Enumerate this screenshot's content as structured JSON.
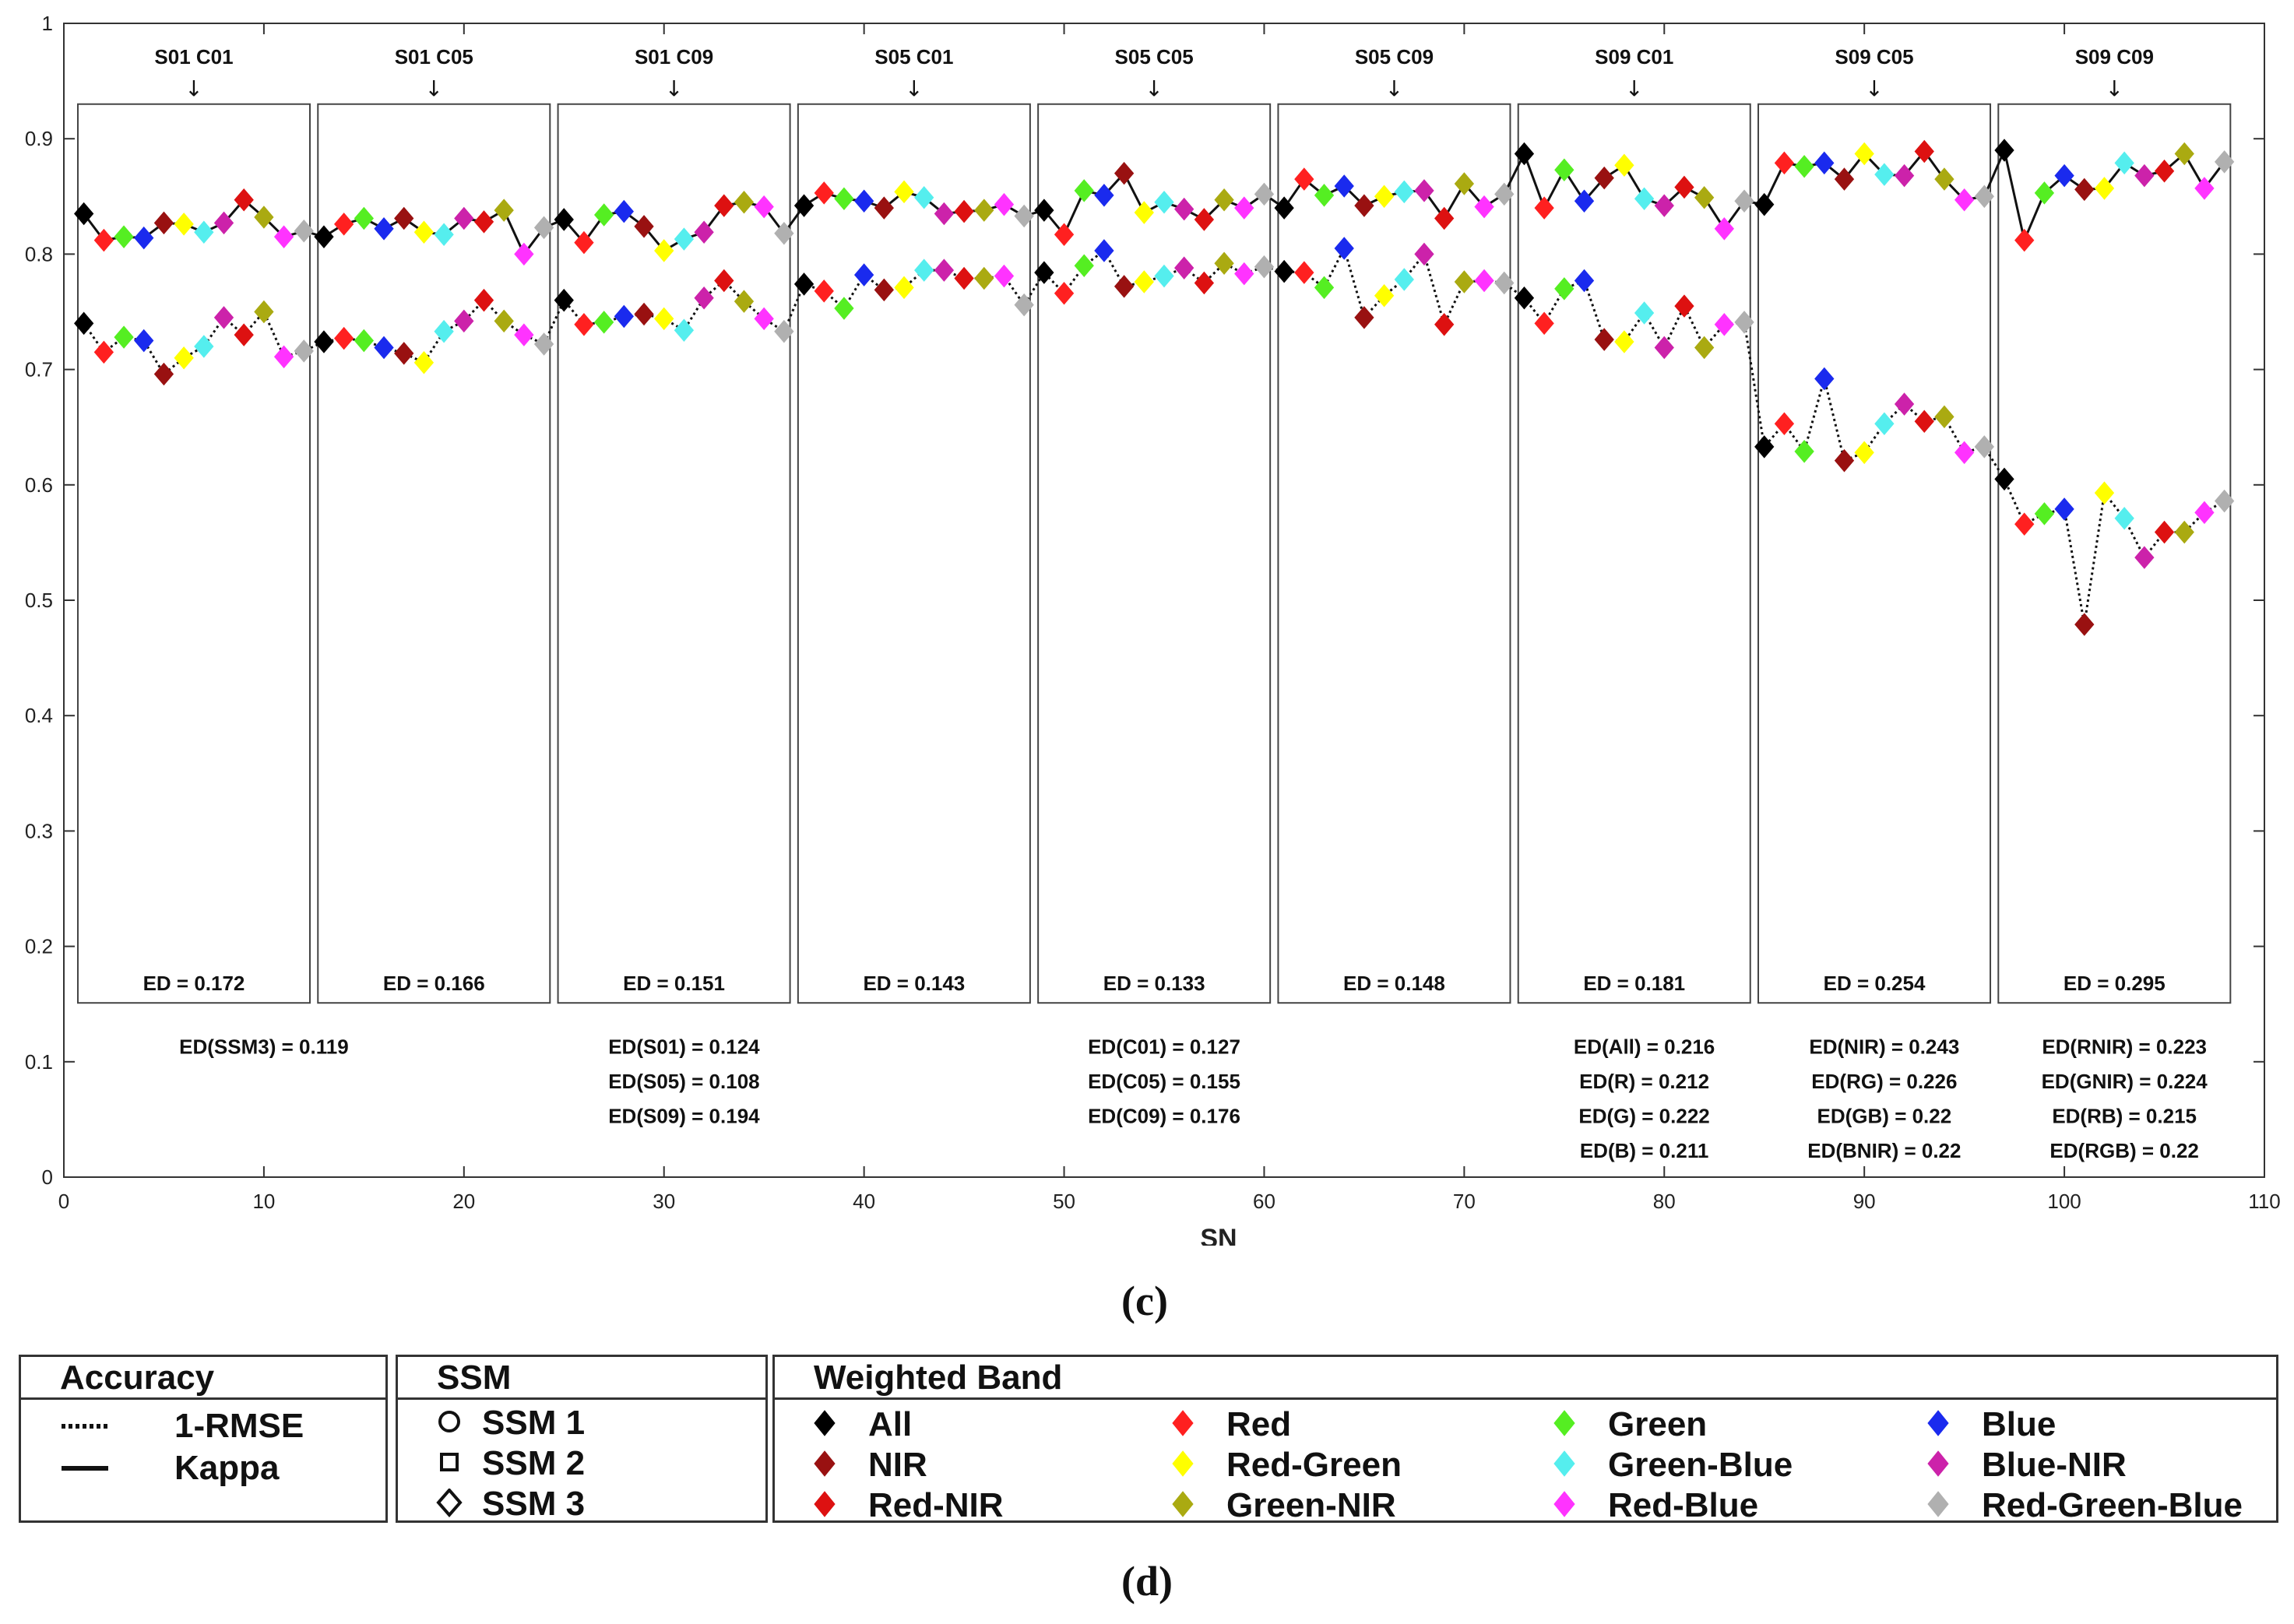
{
  "chart_data": {
    "type": "line",
    "xlabel": "SN",
    "ylabel": "",
    "xlim": [
      0,
      110
    ],
    "ylim": [
      0,
      1
    ],
    "xticks": [
      0,
      10,
      20,
      30,
      40,
      50,
      60,
      70,
      80,
      90,
      100,
      110
    ],
    "yticks": [
      0,
      0.1,
      0.2,
      0.3,
      0.4,
      0.5,
      0.6,
      0.7,
      0.8,
      0.9,
      1
    ],
    "ytick_labels": [
      "0",
      "0.1",
      "0.2",
      "0.3",
      "0.4",
      "0.5",
      "0.6",
      "0.7",
      "0.8",
      "0.9",
      "1"
    ],
    "bands": [
      "All",
      "Red",
      "Green",
      "Blue",
      "NIR",
      "Red-Green",
      "Green-Blue",
      "Blue-NIR",
      "Red-NIR",
      "Green-NIR",
      "Red-Blue",
      "Red-Green-Blue"
    ],
    "band_colors": [
      "#000000",
      "#ff2020",
      "#55ee22",
      "#1a2aee",
      "#991111",
      "#ffff00",
      "#55eeee",
      "#cc22aa",
      "#dd1111",
      "#aaaa11",
      "#ff33ff",
      "#b0b0b0"
    ],
    "x": [
      1,
      2,
      3,
      4,
      5,
      6,
      7,
      8,
      9,
      10,
      11,
      12,
      13,
      14,
      15,
      16,
      17,
      18,
      19,
      20,
      21,
      22,
      23,
      24,
      25,
      26,
      27,
      28,
      29,
      30,
      31,
      32,
      33,
      34,
      35,
      36,
      37,
      38,
      39,
      40,
      41,
      42,
      43,
      44,
      45,
      46,
      47,
      48,
      49,
      50,
      51,
      52,
      53,
      54,
      55,
      56,
      57,
      58,
      59,
      60,
      61,
      62,
      63,
      64,
      65,
      66,
      67,
      68,
      69,
      70,
      71,
      72,
      73,
      74,
      75,
      76,
      77,
      78,
      79,
      80,
      81,
      82,
      83,
      84,
      85,
      86,
      87,
      88,
      89,
      90,
      91,
      92,
      93,
      94,
      95,
      96,
      97,
      98,
      99,
      100,
      101,
      102,
      103,
      104,
      105,
      106,
      107,
      108
    ],
    "series": [
      {
        "name": "Kappa",
        "style": "solid",
        "values": [
          0.835,
          0.812,
          0.815,
          0.814,
          0.827,
          0.826,
          0.819,
          0.827,
          0.847,
          0.832,
          0.815,
          0.82,
          0.815,
          0.826,
          0.831,
          0.822,
          0.831,
          0.819,
          0.817,
          0.831,
          0.828,
          0.838,
          0.8,
          0.823,
          0.83,
          0.81,
          0.834,
          0.837,
          0.824,
          0.803,
          0.813,
          0.819,
          0.842,
          0.845,
          0.841,
          0.818,
          0.842,
          0.853,
          0.848,
          0.846,
          0.84,
          0.854,
          0.849,
          0.835,
          0.837,
          0.838,
          0.843,
          0.833,
          0.838,
          0.817,
          0.855,
          0.851,
          0.87,
          0.836,
          0.845,
          0.839,
          0.83,
          0.847,
          0.84,
          0.852,
          0.84,
          0.865,
          0.851,
          0.859,
          0.842,
          0.85,
          0.854,
          0.855,
          0.831,
          0.861,
          0.841,
          0.852,
          0.887,
          0.84,
          0.873,
          0.846,
          0.866,
          0.877,
          0.848,
          0.842,
          0.858,
          0.849,
          0.822,
          0.846,
          0.843,
          0.879,
          0.876,
          0.879,
          0.865,
          0.887,
          0.869,
          0.868,
          0.889,
          0.865,
          0.847,
          0.85,
          0.89,
          0.812,
          0.853,
          0.868,
          0.856,
          0.857,
          0.879,
          0.868,
          0.872,
          0.887,
          0.857,
          0.88
        ]
      },
      {
        "name": "1-RMSE",
        "style": "dotted",
        "values": [
          0.74,
          0.715,
          0.728,
          0.725,
          0.696,
          0.71,
          0.72,
          0.745,
          0.73,
          0.75,
          0.711,
          0.716,
          0.724,
          0.727,
          0.725,
          0.719,
          0.714,
          0.706,
          0.733,
          0.742,
          0.76,
          0.742,
          0.73,
          0.722,
          0.76,
          0.739,
          0.741,
          0.746,
          0.748,
          0.744,
          0.734,
          0.762,
          0.777,
          0.759,
          0.744,
          0.733,
          0.774,
          0.768,
          0.753,
          0.782,
          0.769,
          0.771,
          0.786,
          0.786,
          0.779,
          0.779,
          0.781,
          0.756,
          0.784,
          0.766,
          0.79,
          0.803,
          0.772,
          0.776,
          0.781,
          0.788,
          0.775,
          0.792,
          0.783,
          0.789,
          0.785,
          0.784,
          0.771,
          0.805,
          0.745,
          0.764,
          0.778,
          0.8,
          0.739,
          0.776,
          0.777,
          0.775,
          0.762,
          0.74,
          0.77,
          0.777,
          0.726,
          0.724,
          0.749,
          0.719,
          0.755,
          0.719,
          0.739,
          0.741,
          0.633,
          0.653,
          0.629,
          0.692,
          0.621,
          0.628,
          0.653,
          0.67,
          0.655,
          0.659,
          0.628,
          0.633,
          0.605,
          0.566,
          0.575,
          0.579,
          0.479,
          0.593,
          0.571,
          0.537,
          0.559,
          0.559,
          0.576,
          0.586
        ]
      }
    ],
    "groups": [
      {
        "label": "S01 C01",
        "ed": "ED = 0.172"
      },
      {
        "label": "S01 C05",
        "ed": "ED = 0.166"
      },
      {
        "label": "S01 C09",
        "ed": "ED = 0.151"
      },
      {
        "label": "S05 C01",
        "ed": "ED = 0.143"
      },
      {
        "label": "S05 C05",
        "ed": "ED = 0.133"
      },
      {
        "label": "S05 C09",
        "ed": "ED = 0.148"
      },
      {
        "label": "S09 C01",
        "ed": "ED = 0.181"
      },
      {
        "label": "S09 C05",
        "ed": "ED = 0.254"
      },
      {
        "label": "S09 C09",
        "ed": "ED = 0.295"
      }
    ],
    "ed_annotations": [
      {
        "x": 10,
        "lines": [
          "ED(SSM3) = 0.119"
        ]
      },
      {
        "x": 31,
        "lines": [
          "ED(S01) = 0.124",
          "ED(S05) = 0.108",
          "ED(S09) = 0.194"
        ]
      },
      {
        "x": 55,
        "lines": [
          "ED(C01) = 0.127",
          "ED(C05) = 0.155",
          "ED(C09) = 0.176"
        ]
      },
      {
        "x": 79,
        "lines": [
          "ED(All) = 0.216",
          "ED(R) = 0.212",
          "ED(G) = 0.222",
          "ED(B) = 0.211"
        ]
      },
      {
        "x": 91,
        "lines": [
          "ED(NIR) = 0.243",
          "ED(RG) = 0.226",
          "ED(GB) = 0.22",
          "ED(BNIR) = 0.22"
        ]
      },
      {
        "x": 103,
        "lines": [
          "ED(RNIR) = 0.223",
          "ED(GNIR) = 0.224",
          "ED(RB) = 0.215",
          "ED(RGB) = 0.22"
        ]
      }
    ],
    "arrow_glyph": "↓"
  },
  "panel_labels": {
    "c": "(c)",
    "d": "(d)"
  },
  "legend": {
    "accuracy": {
      "title": "Accuracy",
      "items": [
        "1-RMSE",
        "Kappa"
      ]
    },
    "ssm": {
      "title": "SSM",
      "items": [
        "SSM 1",
        "SSM 2",
        "SSM 3"
      ]
    },
    "band": {
      "title": "Weighted Band",
      "items": [
        "All",
        "Red",
        "Green",
        "Blue",
        "NIR",
        "Red-Green",
        "Green-Blue",
        "Blue-NIR",
        "Red-NIR",
        "Green-NIR",
        "Red-Blue",
        "Red-Green-Blue"
      ]
    }
  }
}
